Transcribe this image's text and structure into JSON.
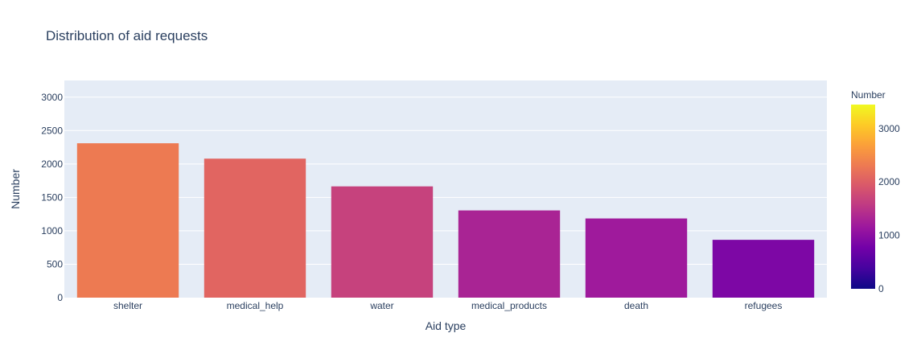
{
  "chart_data": {
    "type": "bar",
    "title": "Distribution of aid requests",
    "xlabel": "Aid type",
    "ylabel": "Number",
    "categories": [
      "shelter",
      "medical_help",
      "water",
      "medical_products",
      "death",
      "refugees"
    ],
    "values": [
      2310,
      2080,
      1665,
      1305,
      1185,
      865
    ],
    "ylim": [
      0,
      3250
    ],
    "yticks": [
      0,
      500,
      1000,
      1500,
      2000,
      2500,
      3000
    ],
    "grid": true,
    "legend": "none",
    "colorbar": {
      "title": "Number",
      "range": [
        0,
        3450
      ],
      "ticks": [
        0,
        1000,
        2000,
        3000
      ],
      "colorscale": [
        "#0d0887",
        "#46039f",
        "#7201a8",
        "#9c179e",
        "#bd3786",
        "#d8576b",
        "#ed7953",
        "#fb9f3a",
        "#fdca26",
        "#f0f921"
      ]
    }
  }
}
